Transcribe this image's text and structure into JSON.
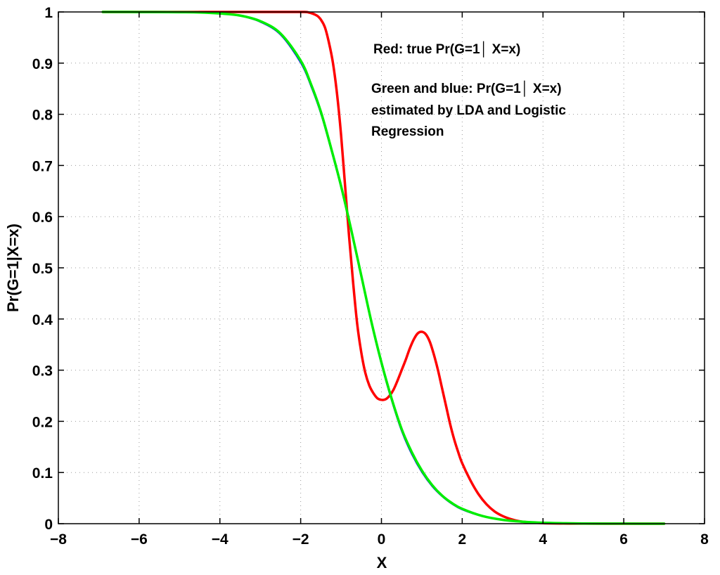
{
  "chart_data": {
    "type": "line",
    "title": "",
    "xlabel": "X",
    "ylabel": "Pr(G=1|X=x)",
    "xlim": [
      -8,
      8
    ],
    "ylim": [
      0,
      1
    ],
    "xticks": [
      -8,
      -6,
      -4,
      -2,
      0,
      2,
      4,
      6,
      8
    ],
    "xtick_labels": [
      "−8",
      "−6",
      "−4",
      "−2",
      "0",
      "2",
      "4",
      "6",
      "8"
    ],
    "yticks": [
      0,
      0.1,
      0.2,
      0.3,
      0.4,
      0.5,
      0.6,
      0.7,
      0.8,
      0.9,
      1
    ],
    "ytick_labels": [
      "0",
      "0.1",
      "0.2",
      "0.3",
      "0.4",
      "0.5",
      "0.6",
      "0.7",
      "0.8",
      "0.9",
      "1"
    ],
    "grid": true,
    "annotations": [
      "Red: true Pr(G=1│ X=x)",
      "Green and blue: Pr(G=1│ X=x)",
      "estimated by LDA and Logistic",
      "Regression"
    ],
    "series": [
      {
        "color": "#ff0000",
        "x": [
          -6.9,
          -3,
          -2,
          -1.8,
          -1.6,
          -1.5,
          -1.4,
          -1.3,
          -1.2,
          -1.1,
          -1.0,
          -0.9,
          -0.8,
          -0.7,
          -0.6,
          -0.5,
          -0.4,
          -0.3,
          -0.2,
          -0.1,
          0.0,
          0.1,
          0.2,
          0.3,
          0.4,
          0.5,
          0.6,
          0.7,
          0.8,
          0.9,
          1.0,
          1.1,
          1.2,
          1.3,
          1.4,
          1.5,
          1.6,
          1.7,
          1.8,
          1.9,
          2.0,
          2.2,
          2.4,
          2.6,
          2.8,
          3.0,
          3.2,
          3.4,
          3.6,
          3.8,
          4.0,
          4.5,
          5,
          6,
          7
        ],
        "y": [
          1.0,
          1.0,
          1.0,
          0.999,
          0.993,
          0.985,
          0.97,
          0.94,
          0.9,
          0.84,
          0.76,
          0.66,
          0.56,
          0.47,
          0.39,
          0.335,
          0.295,
          0.27,
          0.255,
          0.245,
          0.242,
          0.243,
          0.25,
          0.262,
          0.28,
          0.3,
          0.32,
          0.342,
          0.36,
          0.372,
          0.375,
          0.37,
          0.355,
          0.33,
          0.3,
          0.265,
          0.23,
          0.195,
          0.165,
          0.14,
          0.118,
          0.085,
          0.058,
          0.038,
          0.024,
          0.015,
          0.009,
          0.005,
          0.003,
          0.002,
          0.001,
          0.0003,
          0.0001,
          0.0,
          0.0
        ]
      },
      {
        "color": "#0000ff",
        "x": [
          -6.9,
          -6,
          -5,
          -4.5,
          -4,
          -3.5,
          -3,
          -2.5,
          -2,
          -1.75,
          -1.5,
          -1.25,
          -1.0,
          -0.75,
          -0.5,
          -0.25,
          0.0,
          0.25,
          0.5,
          0.75,
          1.0,
          1.25,
          1.5,
          1.75,
          2.0,
          2.5,
          3.0,
          3.5,
          4.0,
          4.5,
          5,
          5.5,
          6,
          7
        ],
        "y": [
          1.0,
          0.9999,
          0.9995,
          0.999,
          0.997,
          0.992,
          0.98,
          0.955,
          0.9,
          0.855,
          0.8,
          0.73,
          0.655,
          0.57,
          0.48,
          0.39,
          0.31,
          0.24,
          0.18,
          0.135,
          0.1,
          0.073,
          0.053,
          0.038,
          0.027,
          0.014,
          0.007,
          0.0035,
          0.0017,
          0.0008,
          0.0004,
          0.0002,
          0.0001,
          0.0
        ]
      },
      {
        "color": "#00ee00",
        "x": [
          -6.9,
          -6,
          -5,
          -4.5,
          -4,
          -3.5,
          -3,
          -2.5,
          -2,
          -1.75,
          -1.5,
          -1.25,
          -1.0,
          -0.75,
          -0.5,
          -0.25,
          0.0,
          0.25,
          0.5,
          0.75,
          1.0,
          1.25,
          1.5,
          1.75,
          2.0,
          2.5,
          3.0,
          3.5,
          4.0,
          4.5,
          5,
          5.5,
          6,
          7
        ],
        "y": [
          1.0,
          0.9999,
          0.9995,
          0.999,
          0.997,
          0.993,
          0.982,
          0.958,
          0.905,
          0.86,
          0.805,
          0.735,
          0.66,
          0.575,
          0.485,
          0.395,
          0.315,
          0.245,
          0.185,
          0.14,
          0.104,
          0.076,
          0.055,
          0.04,
          0.029,
          0.015,
          0.0075,
          0.0038,
          0.0019,
          0.0009,
          0.0004,
          0.0002,
          0.0001,
          0.0
        ]
      }
    ]
  }
}
